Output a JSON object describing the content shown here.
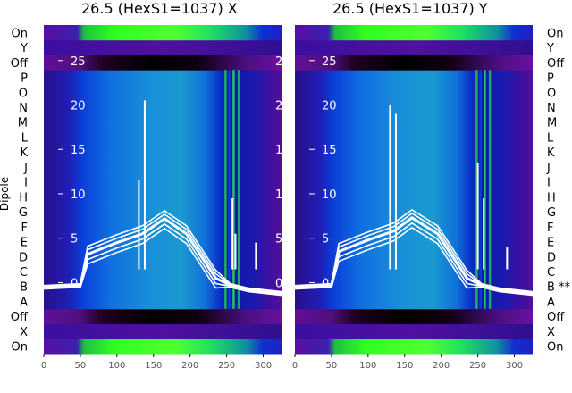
{
  "chart_data": [
    {
      "type": "heatmap",
      "title": "26.5 (HexS1=1037) X",
      "ylabel": "Dipole",
      "y_categories": [
        "On",
        "X",
        "Off",
        "A",
        "B",
        "C",
        "D",
        "E",
        "F",
        "G",
        "H",
        "I",
        "J",
        "K",
        "L",
        "M",
        "N",
        "O",
        "P",
        "Off",
        "Y",
        "On"
      ],
      "y_category_labels": [
        "On",
        "X",
        "Off",
        "A",
        "B",
        "C",
        "D",
        "E",
        "F",
        "G",
        "H",
        "I",
        "J",
        "K",
        "L",
        "M",
        "N",
        "O",
        "P",
        "Off",
        "Y",
        "On"
      ],
      "xlim": [
        0,
        325
      ],
      "x_ticks": [
        0,
        50,
        100,
        150,
        200,
        250,
        300
      ],
      "overlay_ylim": [
        -8,
        29
      ],
      "overlay_ticks": [
        0,
        5,
        10,
        15,
        20,
        25
      ],
      "overlay_series_peak": {
        "x": [
          0,
          50,
          60,
          100,
          135,
          165,
          195,
          235,
          255,
          265,
          280,
          325
        ],
        "y": [
          -0.5,
          -0.3,
          3.2,
          4.5,
          5.5,
          7.2,
          5.5,
          0.5,
          -0.3,
          -0.5,
          -0.8,
          -1.2
        ]
      },
      "spikes": [
        {
          "x": 130,
          "y": 11.5
        },
        {
          "x": 138,
          "y": 20.5
        },
        {
          "x": 258,
          "y": 9.5
        },
        {
          "x": 262,
          "y": 5.5
        },
        {
          "x": 290,
          "y": 4.5
        }
      ]
    },
    {
      "type": "heatmap",
      "title": "26.5 (HexS1=1037) Y",
      "y_category_labels": [
        "On",
        "X",
        "Off",
        "A",
        "B **",
        "C",
        "D",
        "E",
        "F",
        "G",
        "H",
        "I",
        "J",
        "K",
        "L",
        "M",
        "N",
        "O",
        "P",
        "Off",
        "Y",
        "On"
      ],
      "xlim": [
        0,
        325
      ],
      "x_ticks": [
        0,
        50,
        100,
        150,
        200,
        250,
        300
      ],
      "overlay_ylim": [
        -8,
        29
      ],
      "overlay_ticks": [
        0,
        5,
        10,
        15,
        20,
        25
      ],
      "overlay_series_peak": {
        "x": [
          0,
          50,
          60,
          100,
          135,
          160,
          195,
          235,
          255,
          265,
          280,
          325
        ],
        "y": [
          -0.5,
          -0.3,
          3.5,
          4.8,
          5.8,
          7.3,
          5.5,
          0.5,
          -0.3,
          -0.5,
          -0.8,
          -1.2
        ]
      },
      "spikes": [
        {
          "x": 130,
          "y": 20.0
        },
        {
          "x": 138,
          "y": 19.0
        },
        {
          "x": 250,
          "y": 13.5
        },
        {
          "x": 258,
          "y": 9.5
        },
        {
          "x": 290,
          "y": 4.0
        }
      ]
    }
  ],
  "colors": {
    "background": "#ffffff",
    "overlay": "#ffffff",
    "text": "#000000",
    "tick_text": "#555555"
  }
}
